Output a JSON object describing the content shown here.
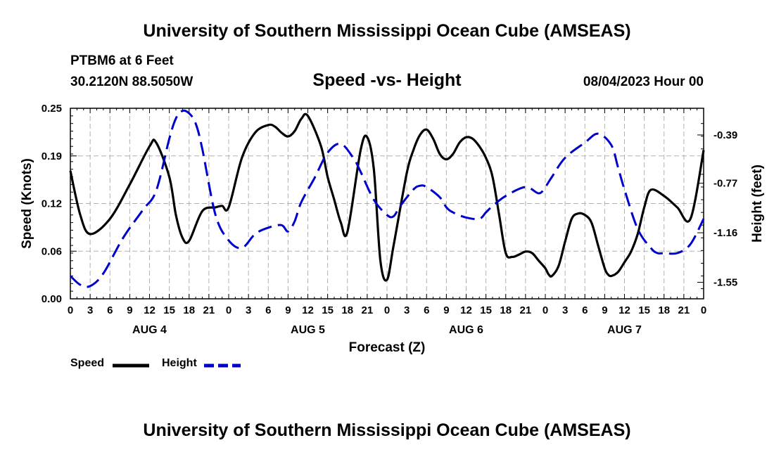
{
  "header": {
    "title": "University of Southern Mississippi Ocean Cube (AMSEAS)",
    "station": "PTBM6 at 6 Feet",
    "coords": "30.2120N  88.5050W",
    "subtitle": "Speed -vs- Height",
    "datetime": "08/04/2023 Hour 00"
  },
  "footer": {
    "title": "University of Southern Mississippi Ocean Cube (AMSEAS)"
  },
  "legend": {
    "speed_label": "Speed",
    "height_label": "Height"
  },
  "colors": {
    "speed": "#000000",
    "height": "#0000cc",
    "grid": "#b0b0b0"
  },
  "chart_data": {
    "type": "line",
    "title": "Speed -vs- Height",
    "xlabel": "Forecast (Z)",
    "ylabel": "Speed (Knots)",
    "y2label": "Height (feet)",
    "xlim": [
      0,
      96
    ],
    "ylim": [
      0,
      0.25
    ],
    "y2lim": [
      -1.68,
      -0.18
    ],
    "yticks": [
      "0.00",
      "0.06",
      "0.12",
      "0.19",
      "0.25"
    ],
    "ytick_values": [
      0,
      0.0625,
      0.125,
      0.1875,
      0.25
    ],
    "y2ticks": [
      "-0.39",
      "-0.77",
      "-1.16",
      "-1.55"
    ],
    "y2tick_values": [
      -0.39,
      -0.77,
      -1.16,
      -1.55
    ],
    "xtick_labels": [
      "0",
      "3",
      "6",
      "9",
      "12",
      "15",
      "18",
      "21",
      "0",
      "3",
      "6",
      "9",
      "12",
      "15",
      "18",
      "21",
      "0",
      "3",
      "6",
      "9",
      "12",
      "15",
      "18",
      "21",
      "0",
      "3",
      "6",
      "9",
      "12",
      "15",
      "18",
      "21",
      "0"
    ],
    "day_labels": [
      {
        "label": "AUG 4",
        "x": 12
      },
      {
        "label": "AUG 5",
        "x": 36
      },
      {
        "label": "AUG 6",
        "x": 60
      },
      {
        "label": "AUG 7",
        "x": 84
      }
    ],
    "series": [
      {
        "name": "Speed",
        "axis": "left",
        "x": [
          0,
          1.5,
          3,
          6,
          9,
          12,
          13,
          15,
          16,
          17,
          18,
          20,
          22,
          23,
          24,
          26,
          28,
          30,
          31,
          32,
          33,
          34,
          35,
          36,
          38,
          39,
          40,
          41,
          42,
          44,
          45,
          46,
          47,
          48,
          49,
          51,
          52,
          53,
          54,
          55,
          56,
          57,
          58,
          59,
          60,
          61,
          62,
          63,
          64,
          65,
          66,
          67,
          68,
          69,
          70,
          71,
          72,
          72.5,
          73,
          74,
          75,
          76,
          77,
          78,
          79,
          80,
          81,
          81.5,
          82,
          83,
          84,
          85,
          86,
          87,
          88,
          90,
          92,
          94,
          96
        ],
        "values": [
          0.168,
          0.11,
          0.085,
          0.105,
          0.15,
          0.2,
          0.205,
          0.16,
          0.11,
          0.08,
          0.076,
          0.115,
          0.12,
          0.122,
          0.12,
          0.185,
          0.218,
          0.228,
          0.226,
          0.218,
          0.213,
          0.22,
          0.236,
          0.24,
          0.2,
          0.16,
          0.13,
          0.1,
          0.088,
          0.195,
          0.212,
          0.17,
          0.05,
          0.025,
          0.07,
          0.165,
          0.195,
          0.215,
          0.222,
          0.21,
          0.19,
          0.183,
          0.19,
          0.205,
          0.212,
          0.21,
          0.2,
          0.185,
          0.16,
          0.11,
          0.06,
          0.055,
          0.058,
          0.062,
          0.06,
          0.05,
          0.04,
          0.032,
          0.03,
          0.043,
          0.075,
          0.105,
          0.112,
          0.11,
          0.1,
          0.07,
          0.04,
          0.032,
          0.03,
          0.035,
          0.048,
          0.062,
          0.085,
          0.12,
          0.143,
          0.135,
          0.12,
          0.105,
          0.195
        ]
      },
      {
        "name": "Height",
        "axis": "right",
        "x": [
          0,
          1.5,
          3,
          5,
          8,
          11,
          13,
          15,
          16,
          17,
          18,
          19,
          20,
          22,
          24,
          26,
          28,
          30,
          32,
          33,
          34,
          35,
          37,
          39,
          41,
          43,
          44,
          46,
          48,
          49,
          50,
          52,
          53,
          54,
          56,
          57,
          58,
          60,
          62,
          63,
          64,
          66,
          69,
          71,
          72,
          73,
          75,
          78,
          80,
          82,
          83,
          84,
          86,
          88,
          89,
          90,
          92,
          94,
          96
        ],
        "values": [
          -1.5,
          -1.57,
          -1.58,
          -1.48,
          -1.2,
          -0.98,
          -0.83,
          -0.42,
          -0.26,
          -0.2,
          -0.22,
          -0.3,
          -0.5,
          -1.02,
          -1.22,
          -1.28,
          -1.17,
          -1.12,
          -1.1,
          -1.15,
          -1.07,
          -0.92,
          -0.73,
          -0.53,
          -0.46,
          -0.58,
          -0.68,
          -0.9,
          -1.02,
          -1.03,
          -0.95,
          -0.82,
          -0.79,
          -0.8,
          -0.88,
          -0.96,
          -1.0,
          -1.04,
          -1.05,
          -1.0,
          -0.95,
          -0.87,
          -0.8,
          -0.85,
          -0.8,
          -0.72,
          -0.57,
          -0.45,
          -0.38,
          -0.47,
          -0.64,
          -0.82,
          -1.13,
          -1.28,
          -1.32,
          -1.32,
          -1.32,
          -1.25,
          -1.05
        ]
      }
    ]
  }
}
